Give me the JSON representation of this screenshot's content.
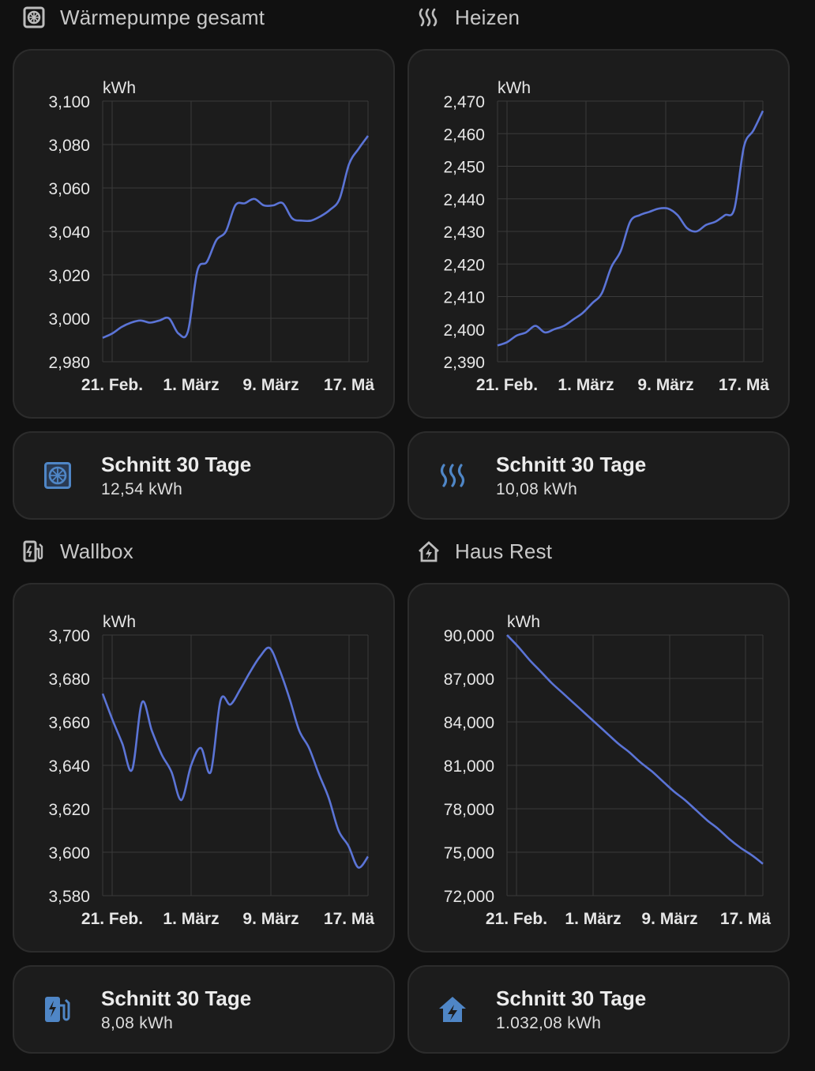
{
  "colors": {
    "line": "#5b74d6",
    "grid": "#3a3a3a",
    "tick": "#e6e6e6",
    "icon_blue": "#4f86c6",
    "title_icon": "#bdbdbd"
  },
  "sections": [
    {
      "title": "Wärmepumpe gesamt",
      "icon": "heat-pump-icon"
    },
    {
      "title": "Heizen",
      "icon": "heat-wave-icon"
    },
    {
      "title": "Wallbox",
      "icon": "ev-station-icon"
    },
    {
      "title": "Haus Rest",
      "icon": "home-lightning-icon"
    }
  ],
  "tiles": [
    {
      "name": "Schnitt 30 Tage",
      "state": "12,54 kWh",
      "icon": "heat-pump-icon"
    },
    {
      "name": "Schnitt 30 Tage",
      "state": "10,08 kWh",
      "icon": "heat-wave-icon"
    },
    {
      "name": "Schnitt 30 Tage",
      "state": "8,08 kWh",
      "icon": "ev-station-icon"
    },
    {
      "name": "Schnitt 30 Tage",
      "state": "1.032,08 kWh",
      "icon": "home-lightning-icon"
    }
  ],
  "chart_data": [
    {
      "type": "line",
      "ylabel": "kWh",
      "ylim": [
        2980,
        3100
      ],
      "yticks": [
        "3,100",
        "3,080",
        "3,060",
        "3,040",
        "3,020",
        "3,000",
        "2,980"
      ],
      "xticks": [
        "21. Feb.",
        "1. März",
        "9. März",
        "17. Mä"
      ],
      "series": [
        {
          "values": [
            2991,
            2993,
            2996,
            2998,
            2999,
            2998,
            2999,
            3000,
            2993,
            2994,
            3022,
            3026,
            3036,
            3040,
            3052,
            3053,
            3055,
            3052,
            3052,
            3053,
            3046,
            3045,
            3045,
            3047,
            3050,
            3055,
            3071,
            3078,
            3084
          ]
        }
      ]
    },
    {
      "type": "line",
      "ylabel": "kWh",
      "ylim": [
        2390,
        2470
      ],
      "yticks": [
        "2,470",
        "2,460",
        "2,450",
        "2,440",
        "2,430",
        "2,420",
        "2,410",
        "2,400",
        "2,390"
      ],
      "xticks": [
        "21. Feb.",
        "1. März",
        "9. März",
        "17. Mä"
      ],
      "series": [
        {
          "values": [
            2395,
            2396,
            2398,
            2399,
            2401,
            2399,
            2400,
            2401,
            2403,
            2405,
            2408,
            2411,
            2419,
            2424,
            2433,
            2435,
            2436,
            2437,
            2437,
            2435,
            2431,
            2430,
            2432,
            2433,
            2435,
            2437,
            2456,
            2461,
            2467
          ]
        }
      ]
    },
    {
      "type": "line",
      "ylabel": "kWh",
      "ylim": [
        3580,
        3700
      ],
      "yticks": [
        "3,700",
        "3,680",
        "3,660",
        "3,640",
        "3,620",
        "3,600",
        "3,580"
      ],
      "xticks": [
        "21. Feb.",
        "1. März",
        "9. März",
        "17. Mä"
      ],
      "series": [
        {
          "values": [
            3673,
            3661,
            3650,
            3638,
            3669,
            3656,
            3645,
            3637,
            3624,
            3640,
            3648,
            3637,
            3670,
            3668,
            3675,
            3683,
            3690,
            3694,
            3684,
            3671,
            3656,
            3648,
            3636,
            3625,
            3610,
            3603,
            3593,
            3598
          ]
        }
      ]
    },
    {
      "type": "line",
      "ylabel": "kWh",
      "ylim": [
        72000,
        90000
      ],
      "yticks": [
        "90,000",
        "87,000",
        "84,000",
        "81,000",
        "78,000",
        "75,000",
        "72,000"
      ],
      "xticks": [
        "21. Feb.",
        "1. März",
        "9. März",
        "17. Mä"
      ],
      "series": [
        {
          "values": [
            90000,
            89200,
            88300,
            87500,
            86700,
            86000,
            85300,
            84600,
            83900,
            83200,
            82500,
            81900,
            81200,
            80600,
            79900,
            79200,
            78600,
            77900,
            77200,
            76600,
            75900,
            75300,
            74800,
            74200
          ]
        }
      ]
    }
  ]
}
